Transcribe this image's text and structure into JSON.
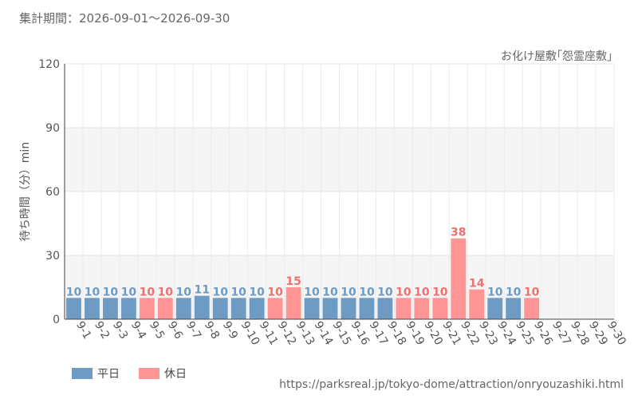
{
  "header": {
    "period": "集計期間：2026-09-01～2026-09-30"
  },
  "attraction_title": "お化け屋敷｢怨霊座敷｣",
  "source_url": "https://parksreal.jp/tokyo-dome/attraction/onryouzashiki.html",
  "legend": [
    {
      "label": "平日",
      "color": "#6d9bc3"
    },
    {
      "label": "休日",
      "color": "#ff9595"
    }
  ],
  "chart_data": {
    "type": "bar",
    "ylabel": "待ち時間（分）min",
    "ylim": [
      0,
      120
    ],
    "yticks": [
      0,
      30,
      60,
      90,
      120
    ],
    "grid": true,
    "legend_position": "bottom-left",
    "colors": {
      "weekday": "#6d9bc3",
      "holiday": "#ff9595",
      "weekday_label": "#6d9bc3",
      "holiday_label": "#f07070"
    },
    "categories": [
      "9-1",
      "9-2",
      "9-3",
      "9-4",
      "9-5",
      "9-6",
      "9-7",
      "9-8",
      "9-9",
      "9-10",
      "9-11",
      "9-12",
      "9-13",
      "9-14",
      "9-15",
      "9-16",
      "9-17",
      "9-18",
      "9-19",
      "9-20",
      "9-21",
      "9-22",
      "9-23",
      "9-24",
      "9-25",
      "9-26",
      "9-27",
      "9-28",
      "9-29",
      "9-30"
    ],
    "values": [
      10,
      10,
      10,
      10,
      10,
      10,
      10,
      11,
      10,
      10,
      10,
      10,
      15,
      10,
      10,
      10,
      10,
      10,
      10,
      10,
      10,
      38,
      14,
      10,
      10,
      10,
      null,
      null,
      null,
      null
    ],
    "day_type": [
      "weekday",
      "weekday",
      "weekday",
      "weekday",
      "holiday",
      "holiday",
      "weekday",
      "weekday",
      "weekday",
      "weekday",
      "weekday",
      "holiday",
      "holiday",
      "weekday",
      "weekday",
      "weekday",
      "weekday",
      "weekday",
      "holiday",
      "holiday",
      "holiday",
      "holiday",
      "holiday",
      "weekday",
      "weekday",
      "holiday",
      "holiday",
      "weekday",
      "weekday",
      "weekday"
    ]
  }
}
